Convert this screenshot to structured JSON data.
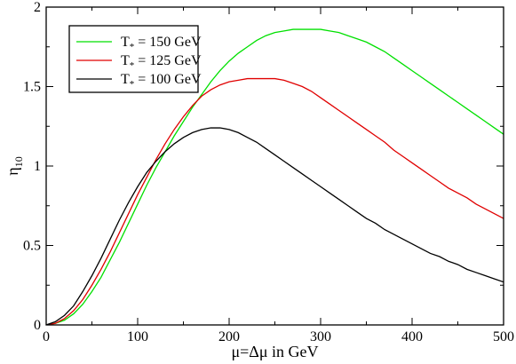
{
  "chart_data": {
    "type": "line",
    "title": "",
    "xlabel": "μ=Δμ  in GeV",
    "ylabel": "η10",
    "ylabel_main": "η",
    "ylabel_sub": "10",
    "xlim": [
      0,
      500
    ],
    "ylim": [
      0,
      2
    ],
    "x_ticks": [
      0,
      100,
      200,
      300,
      400,
      500
    ],
    "x_tick_labels": [
      "0",
      "100",
      "200",
      "300",
      "400",
      "500"
    ],
    "y_ticks": [
      0,
      0.5,
      1,
      1.5,
      2
    ],
    "y_tick_labels": [
      "0",
      "0.5",
      "1",
      "1.5",
      "2"
    ],
    "grid": false,
    "legend_position": "top-left",
    "series": [
      {
        "name": "T* = 150 GeV",
        "label_main": "T",
        "label_sub": "*",
        "label_rest": " = 150 GeV",
        "color": "#00e000",
        "x": [
          0,
          10,
          20,
          30,
          40,
          50,
          60,
          70,
          80,
          90,
          100,
          110,
          120,
          130,
          140,
          150,
          160,
          170,
          180,
          190,
          200,
          210,
          220,
          230,
          240,
          250,
          260,
          270,
          280,
          290,
          300,
          310,
          320,
          330,
          340,
          350,
          360,
          370,
          380,
          390,
          400,
          410,
          420,
          430,
          440,
          450,
          460,
          470,
          480,
          490,
          500
        ],
        "y": [
          0.0,
          0.01,
          0.03,
          0.07,
          0.13,
          0.21,
          0.3,
          0.41,
          0.52,
          0.64,
          0.76,
          0.88,
          0.99,
          1.09,
          1.19,
          1.28,
          1.37,
          1.45,
          1.53,
          1.6,
          1.66,
          1.71,
          1.75,
          1.79,
          1.82,
          1.84,
          1.85,
          1.86,
          1.86,
          1.86,
          1.86,
          1.85,
          1.84,
          1.82,
          1.8,
          1.78,
          1.75,
          1.72,
          1.68,
          1.64,
          1.6,
          1.56,
          1.52,
          1.48,
          1.44,
          1.4,
          1.36,
          1.32,
          1.28,
          1.24,
          1.2
        ]
      },
      {
        "name": "T* = 125 GeV",
        "label_main": "T",
        "label_sub": "*",
        "label_rest": " = 125 GeV",
        "color": "#e00000",
        "x": [
          0,
          10,
          20,
          30,
          40,
          50,
          60,
          70,
          80,
          90,
          100,
          110,
          120,
          130,
          140,
          150,
          160,
          170,
          180,
          190,
          200,
          210,
          220,
          230,
          240,
          250,
          260,
          270,
          280,
          290,
          300,
          310,
          320,
          330,
          340,
          350,
          360,
          370,
          380,
          390,
          400,
          410,
          420,
          430,
          440,
          450,
          460,
          470,
          480,
          490,
          500
        ],
        "y": [
          0.0,
          0.01,
          0.04,
          0.09,
          0.16,
          0.25,
          0.35,
          0.46,
          0.58,
          0.7,
          0.82,
          0.93,
          1.04,
          1.14,
          1.23,
          1.31,
          1.38,
          1.44,
          1.48,
          1.51,
          1.53,
          1.54,
          1.55,
          1.55,
          1.55,
          1.55,
          1.54,
          1.52,
          1.5,
          1.47,
          1.43,
          1.39,
          1.35,
          1.31,
          1.27,
          1.23,
          1.19,
          1.15,
          1.1,
          1.06,
          1.02,
          0.98,
          0.94,
          0.9,
          0.86,
          0.83,
          0.8,
          0.76,
          0.73,
          0.7,
          0.67
        ]
      },
      {
        "name": "T* = 100 GeV",
        "label_main": "T",
        "label_sub": "*",
        "label_rest": " = 100 GeV",
        "color": "#000000",
        "x": [
          0,
          10,
          20,
          30,
          40,
          50,
          60,
          70,
          80,
          90,
          100,
          110,
          120,
          130,
          140,
          150,
          160,
          170,
          180,
          190,
          200,
          210,
          220,
          230,
          240,
          250,
          260,
          270,
          280,
          290,
          300,
          310,
          320,
          330,
          340,
          350,
          360,
          370,
          380,
          390,
          400,
          410,
          420,
          430,
          440,
          450,
          460,
          470,
          480,
          490,
          500
        ],
        "y": [
          0.0,
          0.02,
          0.06,
          0.12,
          0.21,
          0.31,
          0.42,
          0.54,
          0.66,
          0.77,
          0.87,
          0.96,
          1.03,
          1.09,
          1.14,
          1.18,
          1.21,
          1.23,
          1.24,
          1.24,
          1.23,
          1.21,
          1.18,
          1.15,
          1.11,
          1.07,
          1.03,
          0.99,
          0.95,
          0.91,
          0.87,
          0.83,
          0.79,
          0.75,
          0.71,
          0.67,
          0.64,
          0.6,
          0.57,
          0.54,
          0.51,
          0.48,
          0.45,
          0.43,
          0.4,
          0.38,
          0.35,
          0.33,
          0.31,
          0.29,
          0.27
        ]
      }
    ]
  }
}
